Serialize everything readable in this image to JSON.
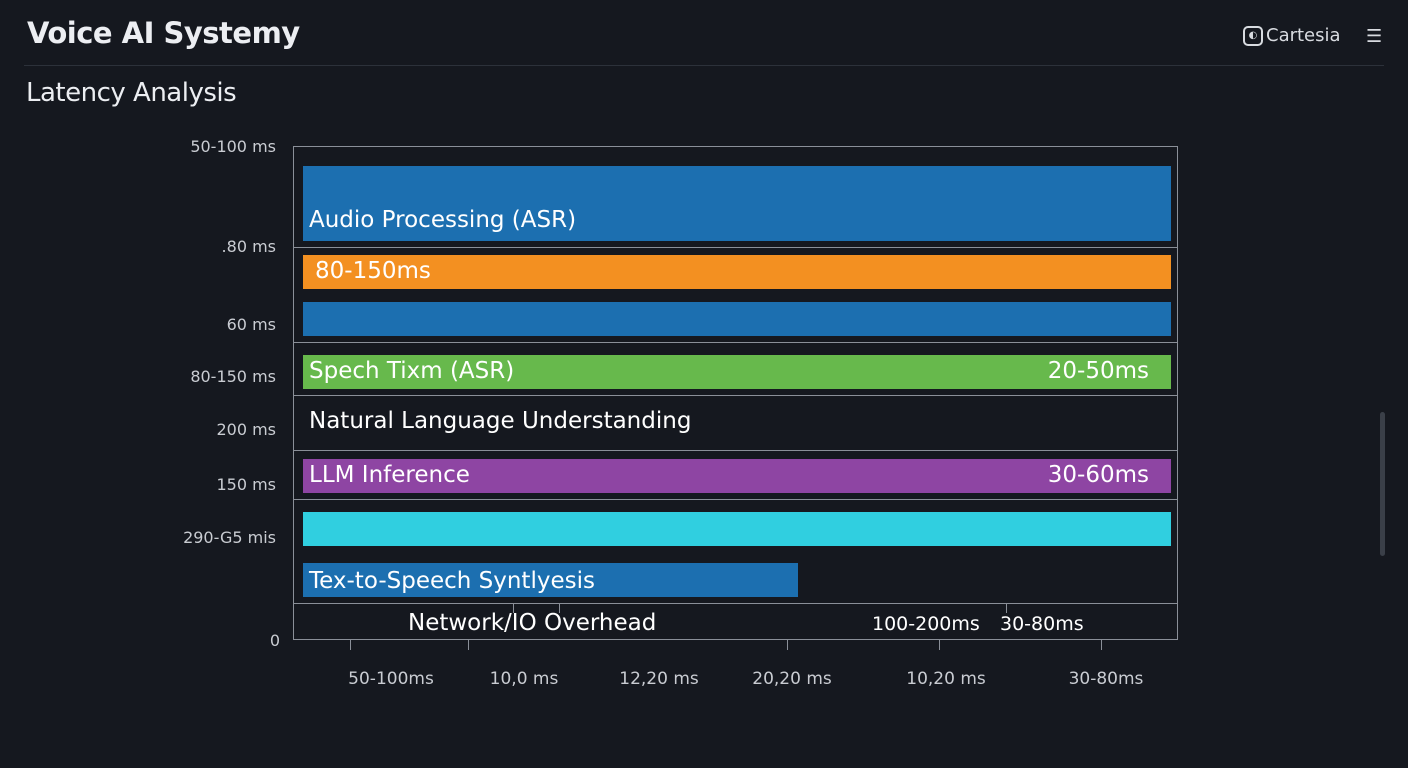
{
  "header": {
    "title": "Voice AI Systemy",
    "brand": "Cartesia",
    "brand_icon": "cartesia-logo-icon",
    "menu_icon": "hamburger-menu-icon"
  },
  "section": {
    "title": "Latency Analysis"
  },
  "chart_data": {
    "type": "bar",
    "orientation": "horizontal",
    "title": "",
    "y_tick_labels": [
      "50-100 ms",
      ".80 ms",
      "60 ms",
      "80-150 ms",
      "200 ms",
      "150 ms",
      "290-G5 mis",
      "0"
    ],
    "x_tick_labels": [
      "50-100ms",
      "10,0 ms",
      "12,20 ms",
      "20,20 ms",
      "10,20 ms",
      "30-80ms"
    ],
    "bars": [
      {
        "label": "Audio Processing (ASR)",
        "value_label": "",
        "fill": 1.0,
        "color": "#1c6fb0"
      },
      {
        "label": "",
        "value_label": "80-150ms",
        "fill": 1.0,
        "color": "#f39021"
      },
      {
        "label": "",
        "value_label": "",
        "fill": 1.0,
        "color": "#1c6fb0"
      },
      {
        "label": "Spech Tixm (ASR)",
        "value_label": "20-50ms",
        "fill": 1.0,
        "color": "#67b94c"
      },
      {
        "label": "Natural Language Understanding",
        "value_label": "",
        "fill": 0,
        "color": ""
      },
      {
        "label": "LLM Inference",
        "value_label": "30-60ms",
        "fill": 1.0,
        "color": "#8e45a3"
      },
      {
        "label": "",
        "value_label": "",
        "fill": 1.0,
        "color": "#30cfe0"
      },
      {
        "label": "Tex-to-Speech Syntlyesis",
        "value_label": "",
        "fill": 0.57,
        "color": "#1c6fb0"
      }
    ],
    "bottom_row": {
      "label": "Network/IO Overhead",
      "value_labels": [
        "100-200ms",
        "30-80ms"
      ]
    },
    "grid": true,
    "legend": "none"
  }
}
